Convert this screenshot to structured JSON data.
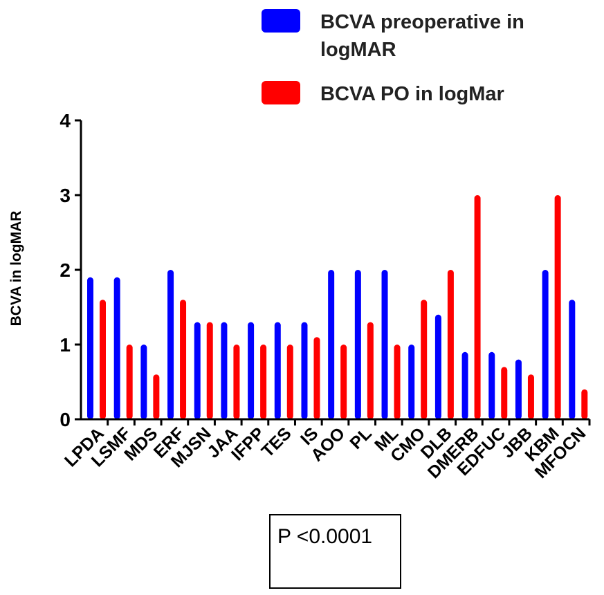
{
  "chart_data": {
    "type": "bar",
    "title": "",
    "xlabel": "",
    "ylabel": "BCVA in logMAR",
    "ylim": [
      0,
      4
    ],
    "yticks": [
      "0",
      "1",
      "2",
      "3",
      "4"
    ],
    "categories": [
      "LPDA",
      "LSMF",
      "MDS",
      "ERF",
      "MJSN",
      "JAA",
      "IFPP",
      "TES",
      "IS",
      "AOO",
      "PL",
      "ML",
      "CMO",
      "DLB",
      "DMERB",
      "EDFUC",
      "JBB",
      "KBM",
      "MFOCN"
    ],
    "series": [
      {
        "name": "BCVA preoperative in logMAR",
        "color": "#0000ff",
        "values": [
          1.9,
          1.9,
          1.0,
          2.0,
          1.3,
          1.3,
          1.3,
          1.3,
          1.3,
          2.0,
          2.0,
          2.0,
          1.0,
          1.4,
          0.9,
          0.9,
          0.8,
          2.0,
          1.6
        ]
      },
      {
        "name": "BCVA PO in logMar",
        "color": "#ff0000",
        "values": [
          1.6,
          1.0,
          0.6,
          1.6,
          1.3,
          1.0,
          1.0,
          1.0,
          1.1,
          1.0,
          1.3,
          1.0,
          1.6,
          2.0,
          3.0,
          0.7,
          0.6,
          3.0,
          0.4
        ]
      }
    ],
    "legend": {
      "position": "top-right",
      "entries": [
        {
          "lines": [
            "BCVA preoperative in",
            "logMAR"
          ],
          "color": "#0000ff"
        },
        {
          "lines": [
            "BCVA PO in logMar"
          ],
          "color": "#ff0000"
        }
      ]
    }
  },
  "annotation": {
    "text": "P <0.0001"
  }
}
